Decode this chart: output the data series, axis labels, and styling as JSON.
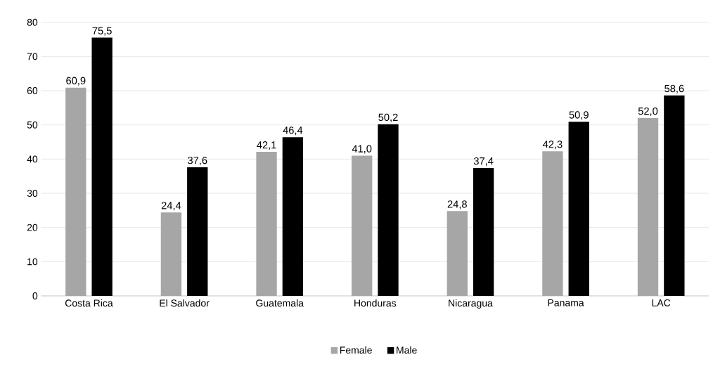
{
  "chart_data": {
    "type": "bar",
    "categories": [
      "Costa Rica",
      "El Salvador",
      "Guatemala",
      "Honduras",
      "Nicaragua",
      "Panama",
      "LAC"
    ],
    "series": [
      {
        "name": "Female",
        "color": "#a6a6a6",
        "values": [
          60.9,
          24.4,
          42.1,
          41.0,
          24.8,
          42.3,
          52.0
        ],
        "value_labels": [
          "60,9",
          "24,4",
          "42,1",
          "41,0",
          "24,8",
          "42,3",
          "52,0"
        ]
      },
      {
        "name": "Male",
        "color": "#000000",
        "values": [
          75.5,
          37.6,
          46.4,
          50.2,
          37.4,
          50.9,
          58.6
        ],
        "value_labels": [
          "75,5",
          "37,6",
          "46,4",
          "50,2",
          "37,4",
          "50,9",
          "58,6"
        ]
      }
    ],
    "ylim": [
      0,
      80
    ],
    "yticks": [
      0,
      10,
      20,
      30,
      40,
      50,
      60,
      70,
      80
    ],
    "grid": "y",
    "legend": "bottom"
  }
}
